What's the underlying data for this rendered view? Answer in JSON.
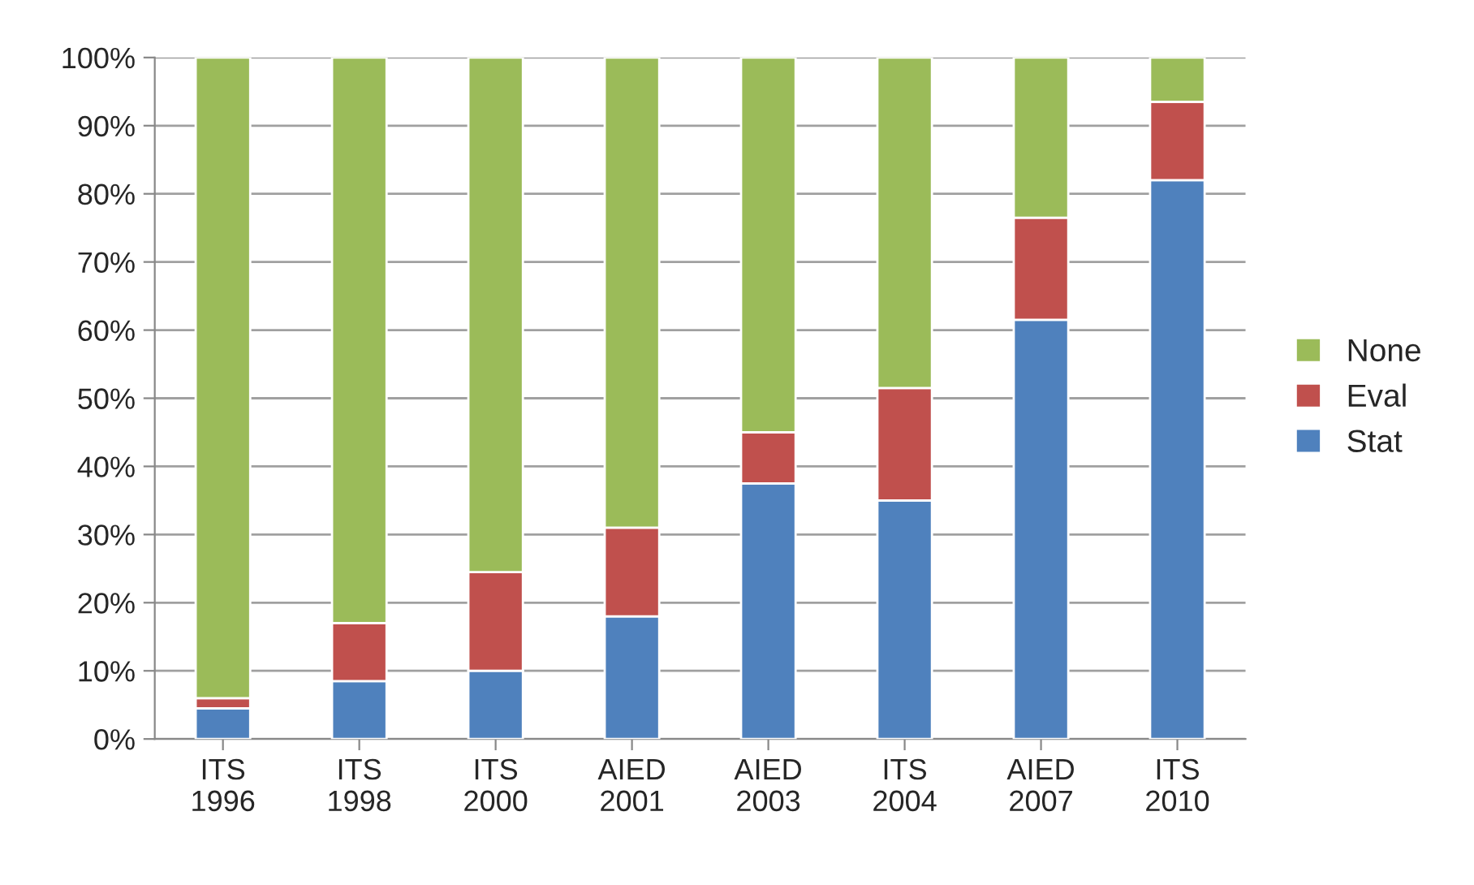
{
  "chart_data": {
    "type": "bar",
    "stacked": true,
    "categories": [
      "ITS\n1996",
      "ITS\n1998",
      "ITS\n2000",
      "AIED\n2001",
      "AIED\n2003",
      "ITS\n2004",
      "AIED\n2007",
      "ITS\n2010"
    ],
    "series": [
      {
        "name": "Stat",
        "color": "#4f81bd",
        "values": [
          4.5,
          8.5,
          10,
          18,
          37.5,
          35,
          61.5,
          82
        ]
      },
      {
        "name": "Eval",
        "color": "#c0504d",
        "values": [
          1.5,
          8.5,
          14.5,
          13,
          7.5,
          16.5,
          15,
          11.5
        ]
      },
      {
        "name": "None",
        "color": "#9bbb59",
        "values": [
          94,
          83,
          75.5,
          69,
          55,
          48.5,
          23.5,
          6.5
        ]
      }
    ],
    "ylim": [
      0,
      100
    ],
    "yticks": [
      {
        "value": 0,
        "label": "0%"
      },
      {
        "value": 10,
        "label": "10%"
      },
      {
        "value": 20,
        "label": "20%"
      },
      {
        "value": 30,
        "label": "30%"
      },
      {
        "value": 40,
        "label": "40%"
      },
      {
        "value": 50,
        "label": "50%"
      },
      {
        "value": 60,
        "label": "60%"
      },
      {
        "value": 70,
        "label": "70%"
      },
      {
        "value": 80,
        "label": "80%"
      },
      {
        "value": 90,
        "label": "90%"
      },
      {
        "value": 100,
        "label": "100%"
      }
    ],
    "grid": "y",
    "legend": "right"
  }
}
